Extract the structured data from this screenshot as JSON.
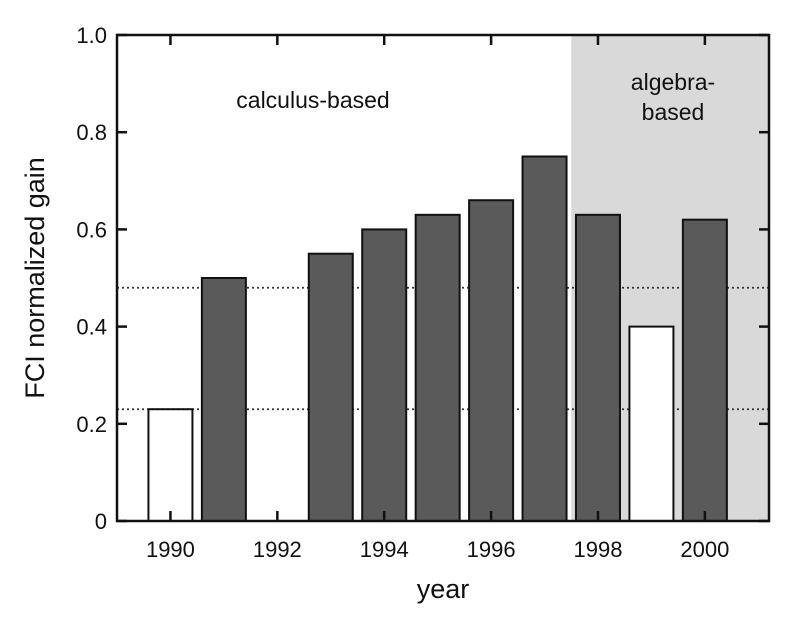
{
  "chart_data": {
    "type": "bar",
    "xlabel": "year",
    "ylabel": "FCI normalized gain",
    "xlim": [
      1989,
      2001.2
    ],
    "ylim": [
      0,
      1.0
    ],
    "x_ticks": [
      1990,
      1992,
      1994,
      1996,
      1998,
      2000
    ],
    "y_ticks": [
      0,
      0.2,
      0.4,
      0.6,
      0.8,
      1.0
    ],
    "y_tick_labels": [
      "0",
      "0.2",
      "0.4",
      "0.6",
      "0.8",
      "1.0"
    ],
    "grid": false,
    "reference_lines": [
      0.48,
      0.23
    ],
    "regions": [
      {
        "label": "calculus-based",
        "label_lines": [
          "calculus-based"
        ],
        "x_from": 1989,
        "x_to": 1997.5,
        "fill": "#ffffff"
      },
      {
        "label": "algebra-based",
        "label_lines": [
          "algebra-",
          "based"
        ],
        "x_from": 1997.5,
        "x_to": 2001.2,
        "fill": "#d9d9d9"
      }
    ],
    "series": [
      {
        "style": "open",
        "fill": "#ffffff",
        "points": [
          {
            "x": 1990,
            "y": 0.23
          },
          {
            "x": 1999,
            "y": 0.4
          }
        ]
      },
      {
        "style": "filled",
        "fill": "#5a5a5a",
        "points": [
          {
            "x": 1991,
            "y": 0.5
          },
          {
            "x": 1993,
            "y": 0.55
          },
          {
            "x": 1994,
            "y": 0.6
          },
          {
            "x": 1995,
            "y": 0.63
          },
          {
            "x": 1996,
            "y": 0.66
          },
          {
            "x": 1997,
            "y": 0.75
          },
          {
            "x": 1998,
            "y": 0.63
          },
          {
            "x": 2000,
            "y": 0.62
          }
        ]
      }
    ]
  }
}
